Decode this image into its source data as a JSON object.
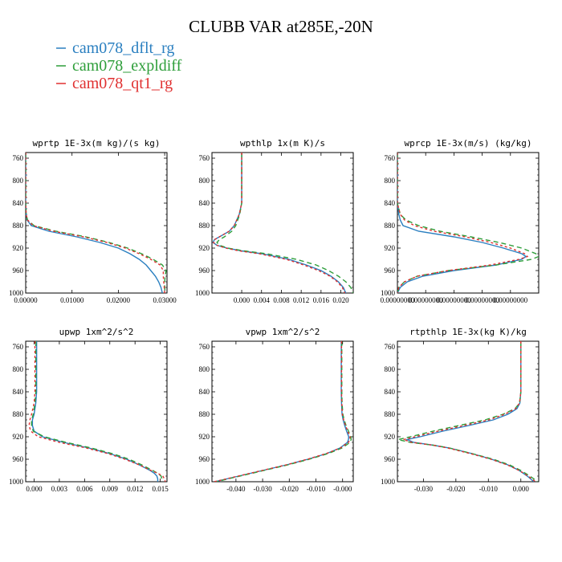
{
  "title": "CLUBB VAR at285E,-20N",
  "legend": [
    {
      "label": "cam078_dflt_rg",
      "color": "#2a7fc0",
      "dash": ""
    },
    {
      "label": "cam078_expldiff",
      "color": "#2e9e3a",
      "dash": "6,4"
    },
    {
      "label": "cam078_qt1_rg",
      "color": "#e03030",
      "dash": "3,3"
    }
  ],
  "chart_data": [
    {
      "type": "line",
      "title": "wprtp  1E-3x(m kg)/(s kg)",
      "ylim": [
        1000,
        750
      ],
      "xlim": [
        0,
        0.0305
      ],
      "yticks": [
        760,
        800,
        840,
        880,
        920,
        960,
        1000
      ],
      "xticks": [
        0,
        0.01,
        0.02,
        0.03
      ],
      "xtick_labels": [
        "0.00000",
        "0.01000",
        "0.02000",
        "0.03000"
      ],
      "y": [
        750,
        800,
        840,
        860,
        870,
        880,
        890,
        900,
        910,
        920,
        930,
        940,
        950,
        960,
        970,
        980,
        990,
        1000
      ],
      "series": [
        {
          "name": "cam078_dflt_rg",
          "values": [
            0,
            0,
            0,
            0.0001,
            0.0003,
            0.0012,
            0.005,
            0.011,
            0.016,
            0.02,
            0.0225,
            0.0245,
            0.026,
            0.027,
            0.028,
            0.0287,
            0.0292,
            0.0295
          ]
        },
        {
          "name": "cam078_expldiff",
          "values": [
            0,
            0,
            0,
            0.0001,
            0.0004,
            0.0018,
            0.0065,
            0.013,
            0.018,
            0.022,
            0.025,
            0.0275,
            0.0295,
            0.0303,
            0.0301,
            0.03,
            0.03,
            0.0301
          ]
        },
        {
          "name": "cam078_qt1_rg",
          "values": [
            0,
            0,
            0,
            0.0001,
            0.0004,
            0.0016,
            0.006,
            0.0125,
            0.0175,
            0.0215,
            0.0245,
            0.027,
            0.029,
            0.0297,
            0.0297,
            0.0298,
            0.0299,
            0.03
          ]
        }
      ]
    },
    {
      "type": "line",
      "title": "wpthlp  1x(m K)/s",
      "ylim": [
        1000,
        750
      ],
      "xlim": [
        -0.006,
        0.0225
      ],
      "yticks": [
        760,
        800,
        840,
        880,
        920,
        960,
        1000
      ],
      "xticks": [
        0,
        0.004,
        0.008,
        0.012,
        0.016,
        0.02
      ],
      "xtick_labels": [
        "0.000",
        "0.004",
        "0.008",
        "0.012",
        "0.016",
        "0.020"
      ],
      "y": [
        750,
        800,
        840,
        860,
        870,
        880,
        890,
        900,
        905,
        910,
        915,
        920,
        925,
        930,
        940,
        950,
        960,
        970,
        980,
        990,
        1000
      ],
      "series": [
        {
          "name": "cam078_dflt_rg",
          "values": [
            0,
            0,
            0,
            -0.0005,
            -0.001,
            -0.0015,
            -0.0025,
            -0.0045,
            -0.0055,
            -0.0058,
            -0.005,
            -0.003,
            0.0,
            0.004,
            0.0095,
            0.013,
            0.016,
            0.018,
            0.0195,
            0.0205,
            0.021
          ]
        },
        {
          "name": "cam078_expldiff",
          "values": [
            0,
            0,
            0,
            -0.0004,
            -0.0008,
            -0.0012,
            -0.002,
            -0.0035,
            -0.0045,
            -0.005,
            -0.0045,
            -0.0028,
            0.0005,
            0.005,
            0.011,
            0.015,
            0.0175,
            0.0195,
            0.021,
            0.022,
            0.0225
          ]
        },
        {
          "name": "cam078_qt1_rg",
          "values": [
            0,
            0,
            0,
            -0.0005,
            -0.001,
            -0.0015,
            -0.0025,
            -0.0045,
            -0.0055,
            -0.0057,
            -0.005,
            -0.0032,
            -0.0005,
            0.0035,
            0.009,
            0.0125,
            0.0155,
            0.0178,
            0.0193,
            0.0203,
            0.0208
          ]
        }
      ]
    },
    {
      "type": "line",
      "title": "wprcp  1E-3x(m/s) (kg/kg)",
      "ylim": [
        1000,
        750
      ],
      "xlim": [
        0,
        0.0001
      ],
      "yticks": [
        760,
        800,
        840,
        880,
        920,
        960,
        1000
      ],
      "xticks": [
        0,
        2e-05,
        4e-05,
        6e-05,
        8e-05
      ],
      "xtick_labels": [
        "0.00000000",
        "0.00000000",
        "0.00000000",
        "0.00000000",
        "0.00000000"
      ],
      "y": [
        750,
        800,
        840,
        860,
        870,
        880,
        890,
        900,
        910,
        920,
        930,
        935,
        940,
        950,
        960,
        970,
        980,
        990,
        1000
      ],
      "series": [
        {
          "name": "cam078_dflt_rg",
          "values": [
            0,
            0,
            0,
            1e-06,
            2e-06,
            4e-06,
            1.5e-05,
            4e-05,
            6e-05,
            7.5e-05,
            8.8e-05,
            9.1e-05,
            8.8e-05,
            7e-05,
            4e-05,
            1.8e-05,
            7e-06,
            2e-06,
            0
          ]
        },
        {
          "name": "cam078_expldiff",
          "values": [
            0,
            0,
            0,
            2e-06,
            6e-06,
            1.5e-05,
            3e-05,
            5.2e-05,
            7.2e-05,
            8.8e-05,
            9.8e-05,
            0.0001,
            9.5e-05,
            7e-05,
            3.6e-05,
            1.4e-05,
            5e-06,
            1e-06,
            0
          ]
        },
        {
          "name": "cam078_qt1_rg",
          "values": [
            0,
            0,
            0,
            2e-06,
            5e-06,
            1.2e-05,
            2.6e-05,
            4.8e-05,
            6.6e-05,
            8e-05,
            9e-05,
            9.2e-05,
            8.6e-05,
            6.6e-05,
            3.6e-05,
            1.4e-05,
            5e-06,
            1e-06,
            0
          ]
        }
      ]
    },
    {
      "type": "line",
      "title": "upwp  1xm^2/s^2",
      "ylim": [
        1000,
        750
      ],
      "xlim": [
        -0.001,
        0.0158
      ],
      "yticks": [
        760,
        800,
        840,
        880,
        920,
        960,
        1000
      ],
      "xticks": [
        0,
        0.003,
        0.006,
        0.009,
        0.012,
        0.015
      ],
      "xtick_labels": [
        "0.000",
        "0.003",
        "0.006",
        "0.009",
        "0.012",
        "0.015"
      ],
      "y": [
        750,
        800,
        840,
        860,
        880,
        890,
        900,
        910,
        920,
        930,
        940,
        950,
        960,
        970,
        980,
        985,
        990,
        995,
        1000
      ],
      "series": [
        {
          "name": "cam078_dflt_rg",
          "values": [
            0.0003,
            0.0003,
            0.0003,
            0.0002,
            0.0,
            -0.0002,
            -0.0002,
            0.0,
            0.001,
            0.0035,
            0.0065,
            0.009,
            0.011,
            0.0125,
            0.0138,
            0.0143,
            0.0146,
            0.0147,
            0.0147
          ]
        },
        {
          "name": "cam078_expldiff",
          "values": [
            0.0002,
            0.0002,
            0.0002,
            0.0001,
            -0.0001,
            -0.0003,
            -0.0003,
            -0.0001,
            0.0012,
            0.0038,
            0.0068,
            0.0093,
            0.0113,
            0.0128,
            0.0141,
            0.0147,
            0.0151,
            0.0152,
            0.0152
          ]
        },
        {
          "name": "cam078_qt1_rg",
          "values": [
            0.0001,
            0.0001,
            0.0001,
            0.0,
            -0.0003,
            -0.0005,
            -0.0006,
            -0.0004,
            0.0005,
            0.003,
            0.0062,
            0.0088,
            0.0108,
            0.0125,
            0.0139,
            0.0147,
            0.0153,
            0.0155,
            0.0156
          ]
        }
      ]
    },
    {
      "type": "line",
      "title": "vpwp  1xm^2/s^2",
      "ylim": [
        1000,
        750
      ],
      "xlim": [
        -0.049,
        0.004
      ],
      "yticks": [
        760,
        800,
        840,
        880,
        920,
        960,
        1000
      ],
      "xticks": [
        -0.04,
        -0.03,
        -0.02,
        -0.01,
        0
      ],
      "xtick_labels": [
        "-0.040",
        "-0.030",
        "-0.020",
        "-0.010",
        "-0.000"
      ],
      "y": [
        750,
        800,
        840,
        860,
        880,
        890,
        900,
        910,
        920,
        925,
        930,
        940,
        950,
        960,
        970,
        980,
        990,
        1000
      ],
      "series": [
        {
          "name": "cam078_dflt_rg",
          "values": [
            -0.0005,
            -0.0005,
            -0.0005,
            -0.0004,
            -0.0002,
            0.0002,
            0.0008,
            0.0015,
            0.0023,
            0.0022,
            0.0018,
            -0.001,
            -0.006,
            -0.013,
            -0.021,
            -0.03,
            -0.039,
            -0.048
          ]
        },
        {
          "name": "cam078_expldiff",
          "values": [
            -0.0003,
            -0.0003,
            -0.0003,
            -0.0002,
            0.0001,
            0.0006,
            0.0013,
            0.0022,
            0.0031,
            0.0032,
            0.0028,
            -0.0002,
            -0.0055,
            -0.0125,
            -0.0205,
            -0.0295,
            -0.0385,
            -0.0475
          ]
        },
        {
          "name": "cam078_qt1_rg",
          "values": [
            -0.0004,
            -0.0004,
            -0.0004,
            -0.0003,
            -0.0001,
            0.0004,
            0.0011,
            0.0019,
            0.0028,
            0.0027,
            0.0022,
            -0.0008,
            -0.0062,
            -0.0132,
            -0.0212,
            -0.0302,
            -0.0392,
            -0.0482
          ]
        }
      ]
    },
    {
      "type": "line",
      "title": "rtpthlp  1E-3x(kg K)/kg",
      "ylim": [
        1000,
        750
      ],
      "xlim": [
        -0.038,
        0.0055
      ],
      "yticks": [
        760,
        800,
        840,
        880,
        920,
        960,
        1000
      ],
      "xticks": [
        -0.03,
        -0.02,
        -0.01,
        0
      ],
      "xtick_labels": [
        "-0.030",
        "-0.020",
        "-0.010",
        "0.000"
      ],
      "y": [
        750,
        800,
        840,
        860,
        870,
        880,
        890,
        900,
        910,
        920,
        925,
        930,
        935,
        940,
        950,
        960,
        970,
        980,
        990,
        1000
      ],
      "series": [
        {
          "name": "cam078_dflt_rg",
          "values": [
            0,
            0,
            0,
            -0.0003,
            -0.0012,
            -0.004,
            -0.0085,
            -0.016,
            -0.024,
            -0.031,
            -0.035,
            -0.033,
            -0.027,
            -0.022,
            -0.015,
            -0.009,
            -0.004,
            -0.0005,
            0.002,
            0.004
          ]
        },
        {
          "name": "cam078_expldiff",
          "values": [
            0,
            0,
            0,
            -0.0004,
            -0.0018,
            -0.0055,
            -0.011,
            -0.019,
            -0.027,
            -0.034,
            -0.0378,
            -0.034,
            -0.027,
            -0.022,
            -0.015,
            -0.0085,
            -0.0035,
            0.0,
            0.0028,
            0.0052
          ]
        },
        {
          "name": "cam078_qt1_rg",
          "values": [
            0,
            0,
            0,
            -0.0004,
            -0.0016,
            -0.005,
            -0.0098,
            -0.0175,
            -0.0255,
            -0.0325,
            -0.0362,
            -0.0335,
            -0.027,
            -0.0225,
            -0.0155,
            -0.0092,
            -0.0042,
            -0.0005,
            0.0023,
            0.0045
          ]
        }
      ]
    }
  ]
}
